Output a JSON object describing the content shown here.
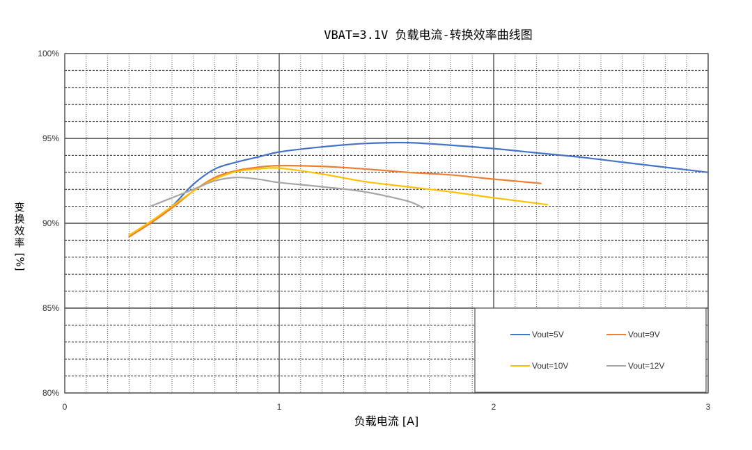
{
  "chart_data": {
    "type": "line",
    "title": "VBAT=3.1V 负载电流-转换效率曲线图",
    "xlabel": "负载电流 [A]",
    "ylabel": "变换效率 [%]",
    "xlim": [
      0,
      3
    ],
    "ylim": [
      80,
      100
    ],
    "x_ticks": [
      "0",
      "1",
      "2",
      "3"
    ],
    "y_ticks": [
      "80%",
      "85%",
      "90%",
      "95%",
      "100%"
    ],
    "grid": {
      "major_x_step": 1,
      "minor_x_step": 0.1,
      "major_y_step": 5,
      "minor_y_step": 1
    },
    "legend_position": "lower right (inside plot)",
    "series": [
      {
        "name": "Vout=5V",
        "color": "#4472C4",
        "x": [
          0.4,
          0.5,
          0.6,
          0.7,
          0.8,
          0.9,
          1.0,
          1.2,
          1.4,
          1.6,
          1.8,
          2.0,
          2.2,
          2.4,
          2.6,
          2.8,
          3.0
        ],
        "values": [
          90.0,
          91.0,
          92.3,
          93.2,
          93.6,
          93.9,
          94.2,
          94.5,
          94.7,
          94.75,
          94.6,
          94.4,
          94.15,
          93.9,
          93.6,
          93.3,
          93.0
        ]
      },
      {
        "name": "Vout=9V",
        "color": "#ED7D31",
        "x": [
          0.3,
          0.4,
          0.5,
          0.6,
          0.7,
          0.8,
          0.9,
          1.0,
          1.2,
          1.4,
          1.6,
          1.8,
          2.0,
          2.22
        ],
        "values": [
          89.2,
          90.0,
          90.9,
          91.9,
          92.7,
          93.1,
          93.3,
          93.4,
          93.35,
          93.2,
          93.0,
          92.85,
          92.6,
          92.35
        ]
      },
      {
        "name": "Vout=10V",
        "color": "#FFC000",
        "x": [
          0.3,
          0.4,
          0.5,
          0.6,
          0.7,
          0.8,
          0.9,
          1.0,
          1.2,
          1.4,
          1.6,
          1.8,
          2.0,
          2.25
        ],
        "values": [
          89.3,
          90.1,
          91.0,
          91.9,
          92.6,
          93.05,
          93.2,
          93.25,
          92.9,
          92.45,
          92.15,
          91.85,
          91.5,
          91.1
        ]
      },
      {
        "name": "Vout=12V",
        "color": "#A5A5A5",
        "x": [
          0.4,
          0.5,
          0.6,
          0.7,
          0.8,
          0.9,
          1.0,
          1.2,
          1.4,
          1.6,
          1.67
        ],
        "values": [
          91.0,
          91.5,
          92.0,
          92.5,
          92.7,
          92.6,
          92.4,
          92.15,
          91.85,
          91.3,
          90.9
        ]
      }
    ]
  },
  "header": {
    "title": "VBAT=3.1V 负载电流-转换效率曲线图"
  },
  "axes": {
    "xlabel": "负载电流 [A]",
    "ylabel_chars": [
      "变",
      "换",
      "效",
      "率"
    ],
    "ylabel_unit": "[%]"
  }
}
